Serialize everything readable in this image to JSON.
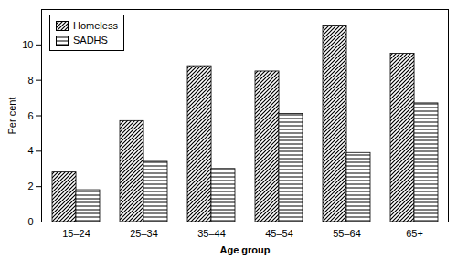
{
  "chart_data": {
    "type": "bar",
    "x_label": "Age group",
    "y_label": "Per cent",
    "categories": [
      "15–24",
      "25–34",
      "35–44",
      "45–54",
      "55–64",
      "65+"
    ],
    "series": [
      {
        "name": "Homeless",
        "color": "#000000",
        "values": [
          2.8,
          5.7,
          8.8,
          8.5,
          11.1,
          9.5
        ]
      },
      {
        "name": "SADHS",
        "color": "#000000",
        "values": [
          1.8,
          3.4,
          3.0,
          6.1,
          3.9,
          6.7
        ]
      }
    ],
    "ylim": [
      0,
      12
    ],
    "yticks": [
      0,
      2,
      4,
      6,
      8,
      10
    ],
    "grid": false,
    "legend": "top-left"
  }
}
